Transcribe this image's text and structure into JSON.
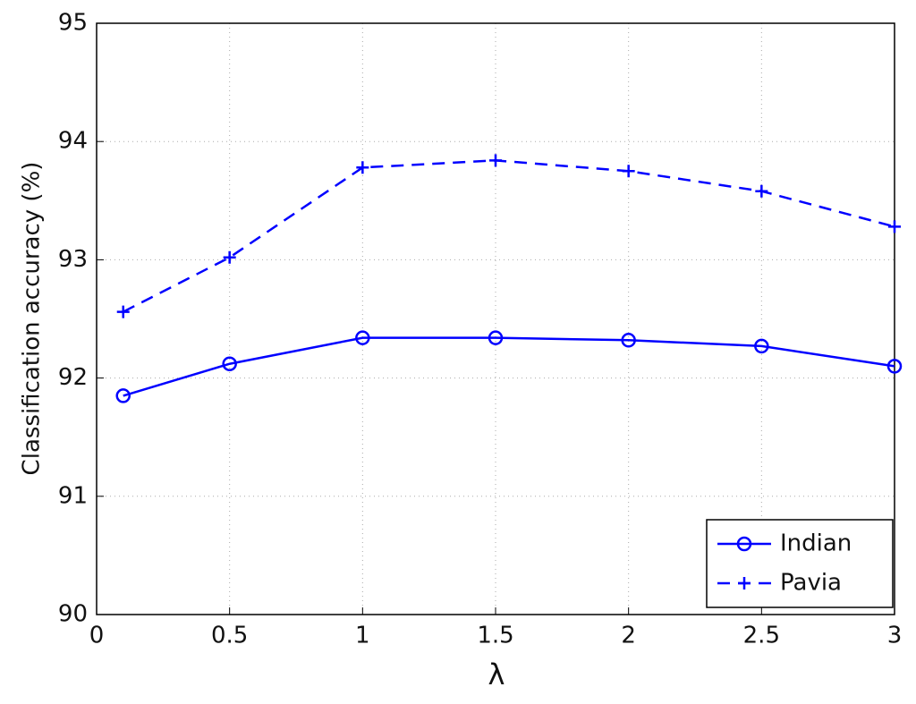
{
  "chart_data": {
    "type": "line",
    "x_label": "λ",
    "y_label": "Classification accuracy (%)",
    "x": [
      0.1,
      0.5,
      1,
      1.5,
      2,
      2.5,
      3
    ],
    "series": [
      {
        "name": "Indian",
        "color": "#0000ff",
        "line_style": "solid",
        "marker": "circle",
        "values": [
          91.85,
          92.12,
          92.34,
          92.34,
          92.32,
          92.27,
          92.1
        ]
      },
      {
        "name": "Pavia",
        "color": "#0000ff",
        "line_style": "dashed",
        "marker": "plus",
        "values": [
          92.56,
          93.02,
          93.78,
          93.84,
          93.75,
          93.58,
          93.28
        ]
      }
    ],
    "xlim": [
      0,
      3
    ],
    "ylim": [
      90,
      95
    ],
    "xticks": [
      0,
      0.5,
      1,
      1.5,
      2,
      2.5,
      3
    ],
    "yticks": [
      90,
      91,
      92,
      93,
      94,
      95
    ],
    "grid": true,
    "legend_position": "lower-right"
  }
}
